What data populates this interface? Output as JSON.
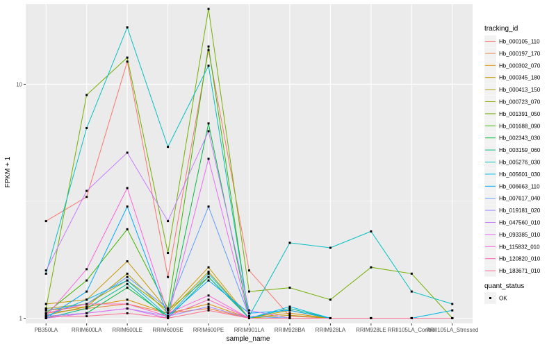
{
  "chart_data": {
    "type": "line",
    "xlabel": "sample_name",
    "ylabel": "FPKM + 1",
    "y_scale": "log10",
    "ylim": [
      0.95,
      22
    ],
    "y_ticks": [
      1,
      10
    ],
    "categories": [
      "PB350LA",
      "RRIM600LA",
      "RRIM600LE",
      "RRIM600SE",
      "RRIM600PE",
      "RRIM901LA",
      "RRIM928BA",
      "RRIM928LA",
      "RRIM928LE",
      "RRII105LA_Control",
      "RRII105LA_Stressed"
    ],
    "legend_title": "tracking_id",
    "legend_position": "right",
    "grid": true,
    "series": [
      {
        "name": "Hb_000105_110",
        "color": "#F8766D",
        "values": [
          2.6,
          3.3,
          12.5,
          1.5,
          14,
          1.6,
          1.02,
          1.0,
          1.0,
          1.0,
          1.0
        ]
      },
      {
        "name": "Hb_000197_170",
        "color": "#EC8239",
        "values": [
          1.05,
          1.1,
          1.15,
          1.05,
          1.1,
          1.0,
          1.0,
          1.0,
          1.0,
          1.0,
          1.0
        ]
      },
      {
        "name": "Hb_000302_070",
        "color": "#DB8E00",
        "values": [
          1.08,
          1.12,
          1.2,
          1.05,
          1.15,
          1.0,
          1.05,
          1.0,
          1.0,
          1.0,
          1.0
        ]
      },
      {
        "name": "Hb_000345_180",
        "color": "#C79800",
        "values": [
          1.15,
          1.2,
          1.75,
          1.08,
          1.65,
          1.0,
          1.08,
          1.0,
          1.0,
          1.0,
          1.0
        ]
      },
      {
        "name": "Hb_000413_150",
        "color": "#AFA100",
        "values": [
          1.03,
          1.12,
          1.55,
          1.05,
          1.58,
          1.0,
          1.03,
          1.0,
          1.0,
          1.0,
          1.0
        ]
      },
      {
        "name": "Hb_000723_070",
        "color": "#94AA00",
        "values": [
          1.1,
          1.15,
          1.45,
          1.08,
          1.5,
          1.0,
          1.0,
          1.0,
          1.0,
          1.0,
          1.0
        ]
      },
      {
        "name": "Hb_001391_050",
        "color": "#72B000",
        "values": [
          1.1,
          9.0,
          13.0,
          1.9,
          21,
          1.3,
          1.35,
          1.2,
          1.65,
          1.55,
          1.0
        ]
      },
      {
        "name": "Hb_001688_090",
        "color": "#3DB600",
        "values": [
          1.05,
          1.45,
          2.4,
          1.1,
          14.5,
          1.0,
          1.0,
          1.0,
          1.0,
          1.0,
          1.0
        ]
      },
      {
        "name": "Hb_002343_030",
        "color": "#00BA42",
        "values": [
          1.02,
          1.05,
          1.35,
          1.02,
          6.8,
          1.0,
          1.0,
          1.0,
          1.0,
          1.0,
          1.0
        ]
      },
      {
        "name": "Hb_003159_060",
        "color": "#00BC8B",
        "values": [
          1.0,
          1.1,
          1.4,
          1.0,
          1.5,
          1.0,
          1.1,
          1.0,
          1.0,
          1.0,
          1.0
        ]
      },
      {
        "name": "Hb_005276_030",
        "color": "#00BFC4",
        "values": [
          1.55,
          6.5,
          17.5,
          5.4,
          12,
          1.02,
          2.1,
          2.0,
          2.35,
          1.3,
          1.15
        ]
      },
      {
        "name": "Hb_005601_030",
        "color": "#00B8E7",
        "values": [
          1.02,
          1.2,
          1.45,
          1.02,
          1.55,
          1.0,
          1.12,
          1.0,
          1.0,
          1.0,
          1.08
        ]
      },
      {
        "name": "Hb_006663_110",
        "color": "#00A9FF",
        "values": [
          1.0,
          1.3,
          3.0,
          1.02,
          1.45,
          1.05,
          1.08,
          1.0,
          1.0,
          1.0,
          1.0
        ]
      },
      {
        "name": "Hb_007617_040",
        "color": "#619CFF",
        "values": [
          1.08,
          1.15,
          1.5,
          1.1,
          3.0,
          1.02,
          1.0,
          1.0,
          1.0,
          1.0,
          1.0
        ]
      },
      {
        "name": "Hb_019181_020",
        "color": "#9F8CFF",
        "values": [
          1.02,
          1.05,
          1.1,
          1.02,
          1.12,
          1.0,
          1.0,
          1.0,
          1.0,
          1.0,
          1.0
        ]
      },
      {
        "name": "Hb_047560_010",
        "color": "#C77CFF",
        "values": [
          1.6,
          3.5,
          5.1,
          2.6,
          6.3,
          1.08,
          1.0,
          1.0,
          1.0,
          1.0,
          1.0
        ]
      },
      {
        "name": "Hb_093385_010",
        "color": "#E76BF3",
        "values": [
          1.0,
          1.05,
          1.1,
          1.0,
          4.8,
          1.0,
          1.0,
          1.0,
          1.0,
          1.0,
          1.0
        ]
      },
      {
        "name": "Hb_115832_010",
        "color": "#F964DE",
        "values": [
          1.02,
          1.62,
          3.6,
          1.05,
          1.25,
          1.0,
          1.0,
          1.0,
          1.0,
          1.0,
          1.0
        ]
      },
      {
        "name": "Hb_120820_010",
        "color": "#FF62BC",
        "values": [
          1.05,
          1.15,
          1.15,
          1.02,
          1.2,
          1.0,
          1.0,
          1.0,
          1.0,
          1.0,
          1.0
        ]
      },
      {
        "name": "Hb_183671_010",
        "color": "#FF6C91",
        "values": [
          1.02,
          1.02,
          1.05,
          1.0,
          1.08,
          1.0,
          1.0,
          1.0,
          1.0,
          1.0,
          1.0
        ]
      }
    ],
    "legend2_title": "quant_status",
    "legend2_entries": [
      "OK"
    ]
  }
}
